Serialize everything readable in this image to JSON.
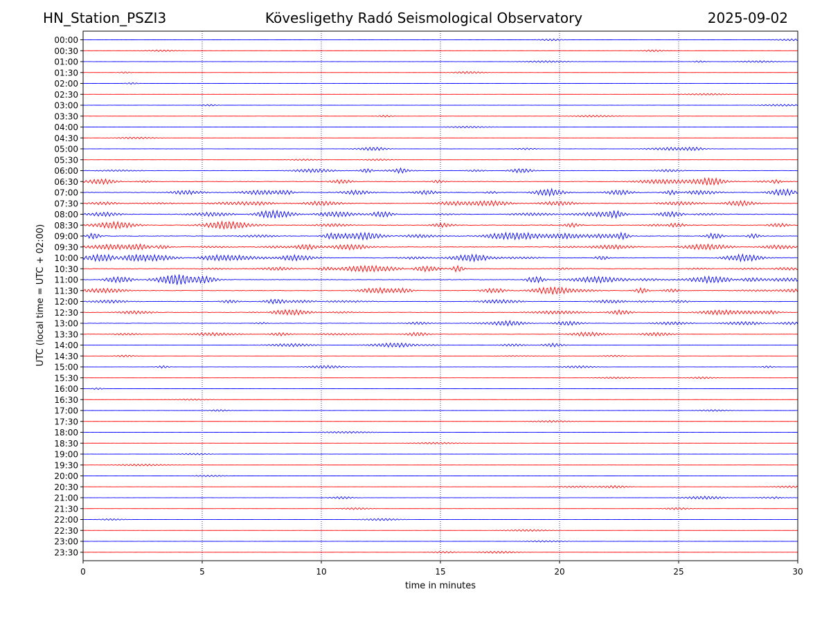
{
  "header": {
    "station": "HN_Station_PSZI3",
    "title": "Kövesligethy Radó Seismological Observatory",
    "date": "2025-09-02"
  },
  "chart_data": {
    "type": "line",
    "title": "Kövesligethy Radó Seismological Observatory",
    "xlabel": "time in minutes",
    "ylabel": "UTC (local time = UTC + 02:00)",
    "xlim": [
      0,
      30
    ],
    "x_ticks": [
      "0",
      "5",
      "10",
      "15",
      "20",
      "25",
      "30"
    ],
    "x_tick_values": [
      0,
      5,
      10,
      15,
      20,
      25,
      30
    ],
    "grid": "vertical dotted lines at x ticks",
    "colors": [
      "#0000ff",
      "#ff0000"
    ],
    "rows": [
      "00:00",
      "00:30",
      "01:00",
      "01:30",
      "02:00",
      "02:30",
      "03:00",
      "03:30",
      "04:00",
      "04:30",
      "05:00",
      "05:30",
      "06:00",
      "06:30",
      "07:00",
      "07:30",
      "08:00",
      "08:30",
      "09:00",
      "09:30",
      "10:00",
      "10:30",
      "11:00",
      "11:30",
      "12:00",
      "12:30",
      "13:00",
      "13:30",
      "14:00",
      "14:30",
      "15:00",
      "15:30",
      "16:00",
      "16:30",
      "17:00",
      "17:30",
      "18:00",
      "18:30",
      "19:00",
      "19:30",
      "20:00",
      "20:30",
      "21:00",
      "21:30",
      "22:00",
      "22:30",
      "23:00",
      "23:30"
    ],
    "row_activity": [
      0.15,
      0.12,
      0.2,
      0.12,
      0.1,
      0.1,
      0.15,
      0.12,
      0.1,
      0.1,
      0.35,
      0.15,
      0.6,
      0.8,
      1.0,
      0.8,
      0.9,
      0.9,
      1.0,
      1.0,
      1.0,
      1.0,
      1.0,
      0.8,
      0.8,
      0.7,
      0.6,
      0.5,
      0.4,
      0.3,
      0.3,
      0.12,
      0.1,
      0.1,
      0.12,
      0.1,
      0.1,
      0.1,
      0.1,
      0.1,
      0.1,
      0.2,
      0.3,
      0.15,
      0.15,
      0.1,
      0.1,
      0.15
    ]
  }
}
